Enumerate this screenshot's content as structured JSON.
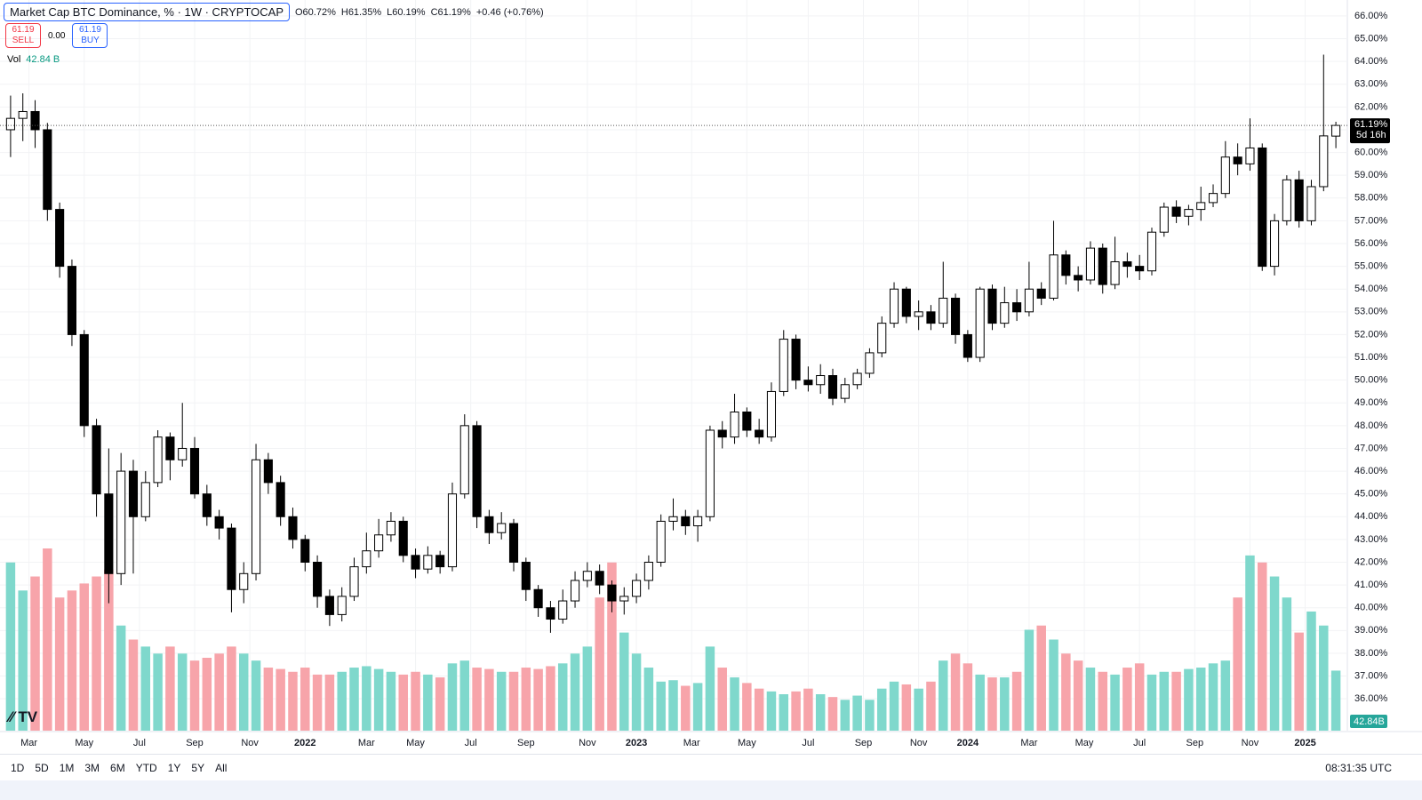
{
  "header": {
    "title": "Market Cap BTC Dominance, % · 1W · CRYPTOCAP",
    "ohlc": [
      "O60.72%",
      "H61.35%",
      "L60.19%",
      "C61.19%",
      "+0.46 (+0.76%)"
    ]
  },
  "trade": {
    "sell_price": "61.19",
    "sell": "SELL",
    "spread": "0.00",
    "buy_price": "61.19",
    "buy": "BUY"
  },
  "volume_legend": {
    "label": "Vol",
    "value": "42.84 B"
  },
  "chart_data": {
    "type": "candlestick",
    "grid": true,
    "up_color": "#ffffff",
    "down_color": "#000000",
    "volume_up_color": "#7fd8cc",
    "volume_down_color": "#f7a4aa",
    "ylim": [
      34.6,
      66.7
    ],
    "yticks": [
      {
        "value": 36,
        "label": "36.00%"
      },
      {
        "value": 37,
        "label": "37.00%"
      },
      {
        "value": 38,
        "label": "38.00%"
      },
      {
        "value": 39,
        "label": "39.00%"
      },
      {
        "value": 40,
        "label": "40.00%"
      },
      {
        "value": 41,
        "label": "41.00%"
      },
      {
        "value": 42,
        "label": "42.00%"
      },
      {
        "value": 43,
        "label": "43.00%"
      },
      {
        "value": 44,
        "label": "44.00%"
      },
      {
        "value": 45,
        "label": "45.00%"
      },
      {
        "value": 46,
        "label": "46.00%"
      },
      {
        "value": 47,
        "label": "47.00%"
      },
      {
        "value": 48,
        "label": "48.00%"
      },
      {
        "value": 49,
        "label": "49.00%"
      },
      {
        "value": 50,
        "label": "50.00%"
      },
      {
        "value": 51,
        "label": "51.00%"
      },
      {
        "value": 52,
        "label": "52.00%"
      },
      {
        "value": 53,
        "label": "53.00%"
      },
      {
        "value": 54,
        "label": "54.00%"
      },
      {
        "value": 55,
        "label": "55.00%"
      },
      {
        "value": 56,
        "label": "56.00%"
      },
      {
        "value": 57,
        "label": "57.00%"
      },
      {
        "value": 58,
        "label": "58.00%"
      },
      {
        "value": 59,
        "label": "59.00%"
      },
      {
        "value": 60,
        "label": "60.00%"
      },
      {
        "value": 61,
        "label": "61.00%"
      },
      {
        "value": 62,
        "label": "62.00%"
      },
      {
        "value": 63,
        "label": "63.00%"
      },
      {
        "value": 64,
        "label": "64.00%"
      },
      {
        "value": 65,
        "label": "65.00%"
      },
      {
        "value": 66,
        "label": "66.00%"
      }
    ],
    "xticks": [
      {
        "value": 1.5,
        "label": "Mar"
      },
      {
        "value": 6,
        "label": "May"
      },
      {
        "value": 10.5,
        "label": "Jul"
      },
      {
        "value": 15,
        "label": "Sep"
      },
      {
        "value": 19.5,
        "label": "Nov"
      },
      {
        "value": 24,
        "label": "2022"
      },
      {
        "value": 29,
        "label": "Mar"
      },
      {
        "value": 33,
        "label": "May"
      },
      {
        "value": 37.5,
        "label": "Jul"
      },
      {
        "value": 42,
        "label": "Sep"
      },
      {
        "value": 47,
        "label": "Nov"
      },
      {
        "value": 51,
        "label": "2023"
      },
      {
        "value": 55.5,
        "label": "Mar"
      },
      {
        "value": 60,
        "label": "May"
      },
      {
        "value": 65,
        "label": "Jul"
      },
      {
        "value": 69.5,
        "label": "Sep"
      },
      {
        "value": 74,
        "label": "Nov"
      },
      {
        "value": 78,
        "label": "2024"
      },
      {
        "value": 83,
        "label": "Mar"
      },
      {
        "value": 87.5,
        "label": "May"
      },
      {
        "value": 92,
        "label": "Jul"
      },
      {
        "value": 96.5,
        "label": "Sep"
      },
      {
        "value": 101,
        "label": "Nov"
      },
      {
        "value": 105.5,
        "label": "2025"
      }
    ],
    "last_price": {
      "value": 61.19,
      "label": "61.19%"
    },
    "countdown": "5d 16h",
    "volume_last_label": "42.84B",
    "candles": [
      [
        61.0,
        62.5,
        59.8,
        61.5
      ],
      [
        61.5,
        62.6,
        60.5,
        61.8
      ],
      [
        61.8,
        62.3,
        60.2,
        61.0
      ],
      [
        61.0,
        61.3,
        57.0,
        57.5
      ],
      [
        57.5,
        57.8,
        54.5,
        55.0
      ],
      [
        55.0,
        55.3,
        51.5,
        52.0
      ],
      [
        52.0,
        52.2,
        47.5,
        48.0
      ],
      [
        48.0,
        48.3,
        44.0,
        45.0
      ],
      [
        45.0,
        47.0,
        40.2,
        41.5
      ],
      [
        41.5,
        46.8,
        41.0,
        46.0
      ],
      [
        46.0,
        46.5,
        41.5,
        44.0
      ],
      [
        44.0,
        46.0,
        43.8,
        45.5
      ],
      [
        45.5,
        47.8,
        45.3,
        47.5
      ],
      [
        47.5,
        47.7,
        45.6,
        46.5
      ],
      [
        46.5,
        49.0,
        46.2,
        47.0
      ],
      [
        47.0,
        47.5,
        44.8,
        45.0
      ],
      [
        45.0,
        45.4,
        43.6,
        44.0
      ],
      [
        44.0,
        44.3,
        43.0,
        43.5
      ],
      [
        43.5,
        43.7,
        39.8,
        40.8
      ],
      [
        40.8,
        42.0,
        40.2,
        41.5
      ],
      [
        41.5,
        47.2,
        41.2,
        46.5
      ],
      [
        46.5,
        46.8,
        45.0,
        45.5
      ],
      [
        45.5,
        45.8,
        43.6,
        44.0
      ],
      [
        44.0,
        44.4,
        42.6,
        43.0
      ],
      [
        43.0,
        43.2,
        41.6,
        42.0
      ],
      [
        42.0,
        42.3,
        40.0,
        40.5
      ],
      [
        40.5,
        40.8,
        39.2,
        39.7
      ],
      [
        39.7,
        40.9,
        39.4,
        40.5
      ],
      [
        40.5,
        42.2,
        40.3,
        41.8
      ],
      [
        41.8,
        43.3,
        41.5,
        42.5
      ],
      [
        42.5,
        43.9,
        42.2,
        43.2
      ],
      [
        43.2,
        44.2,
        42.9,
        43.8
      ],
      [
        43.8,
        44.0,
        42.0,
        42.3
      ],
      [
        42.3,
        42.6,
        41.3,
        41.7
      ],
      [
        41.7,
        42.7,
        41.5,
        42.3
      ],
      [
        42.3,
        42.5,
        41.5,
        41.8
      ],
      [
        41.8,
        45.5,
        41.6,
        45.0
      ],
      [
        45.0,
        48.5,
        44.8,
        48.0
      ],
      [
        48.0,
        48.2,
        43.5,
        44.0
      ],
      [
        44.0,
        44.3,
        42.8,
        43.3
      ],
      [
        43.3,
        44.2,
        43.0,
        43.7
      ],
      [
        43.7,
        43.9,
        41.6,
        42.0
      ],
      [
        42.0,
        42.2,
        40.3,
        40.8
      ],
      [
        40.8,
        41.0,
        39.6,
        40.0
      ],
      [
        40.0,
        40.3,
        38.9,
        39.5
      ],
      [
        39.5,
        40.8,
        39.3,
        40.3
      ],
      [
        40.3,
        41.6,
        40.0,
        41.2
      ],
      [
        41.2,
        42.0,
        40.9,
        41.6
      ],
      [
        41.6,
        41.9,
        40.6,
        41.0
      ],
      [
        41.0,
        41.2,
        39.8,
        40.3
      ],
      [
        40.3,
        40.9,
        39.7,
        40.5
      ],
      [
        40.5,
        41.5,
        40.2,
        41.2
      ],
      [
        41.2,
        42.3,
        40.8,
        42.0
      ],
      [
        42.0,
        44.1,
        41.8,
        43.8
      ],
      [
        43.8,
        44.8,
        43.4,
        44.0
      ],
      [
        44.0,
        44.3,
        43.2,
        43.6
      ],
      [
        43.6,
        44.3,
        42.9,
        44.0
      ],
      [
        44.0,
        48.0,
        43.8,
        47.8
      ],
      [
        47.8,
        48.2,
        47.0,
        47.5
      ],
      [
        47.5,
        49.4,
        47.2,
        48.6
      ],
      [
        48.6,
        48.8,
        47.5,
        47.8
      ],
      [
        47.8,
        48.3,
        47.2,
        47.5
      ],
      [
        47.5,
        49.9,
        47.3,
        49.5
      ],
      [
        49.5,
        52.2,
        49.3,
        51.8
      ],
      [
        51.8,
        52.0,
        49.6,
        50.0
      ],
      [
        50.0,
        50.6,
        49.5,
        49.8
      ],
      [
        49.8,
        50.7,
        49.4,
        50.2
      ],
      [
        50.2,
        50.5,
        48.9,
        49.2
      ],
      [
        49.2,
        50.1,
        49.0,
        49.8
      ],
      [
        49.8,
        50.5,
        49.6,
        50.3
      ],
      [
        50.3,
        51.4,
        50.1,
        51.2
      ],
      [
        51.2,
        52.8,
        51.0,
        52.5
      ],
      [
        52.5,
        54.3,
        52.3,
        54.0
      ],
      [
        54.0,
        54.1,
        52.5,
        52.8
      ],
      [
        52.8,
        53.5,
        52.2,
        53.0
      ],
      [
        53.0,
        53.3,
        52.2,
        52.5
      ],
      [
        52.5,
        55.2,
        52.3,
        53.6
      ],
      [
        53.6,
        53.8,
        51.6,
        52.0
      ],
      [
        52.0,
        52.2,
        50.8,
        51.0
      ],
      [
        51.0,
        54.1,
        50.8,
        54.0
      ],
      [
        54.0,
        54.2,
        52.2,
        52.5
      ],
      [
        52.5,
        54.1,
        52.3,
        53.4
      ],
      [
        53.4,
        54.0,
        52.6,
        53.0
      ],
      [
        53.0,
        55.2,
        52.8,
        54.0
      ],
      [
        54.0,
        54.3,
        53.3,
        53.6
      ],
      [
        53.6,
        57.0,
        53.5,
        55.5
      ],
      [
        55.5,
        55.7,
        54.2,
        54.6
      ],
      [
        54.6,
        55.0,
        53.9,
        54.4
      ],
      [
        54.4,
        56.1,
        54.2,
        55.8
      ],
      [
        55.8,
        56.0,
        53.8,
        54.2
      ],
      [
        54.2,
        56.3,
        54.0,
        55.2
      ],
      [
        55.2,
        55.6,
        54.5,
        55.0
      ],
      [
        55.0,
        55.5,
        54.4,
        54.8
      ],
      [
        54.8,
        56.7,
        54.6,
        56.5
      ],
      [
        56.5,
        57.8,
        56.3,
        57.6
      ],
      [
        57.6,
        57.9,
        56.9,
        57.2
      ],
      [
        57.2,
        57.7,
        56.8,
        57.5
      ],
      [
        57.5,
        58.5,
        57.0,
        57.8
      ],
      [
        57.8,
        58.6,
        57.6,
        58.2
      ],
      [
        58.2,
        60.5,
        58.0,
        59.8
      ],
      [
        59.8,
        60.4,
        59.0,
        59.5
      ],
      [
        59.5,
        61.5,
        59.2,
        60.2
      ],
      [
        60.2,
        60.4,
        54.8,
        55.0
      ],
      [
        55.0,
        57.3,
        54.6,
        57.0
      ],
      [
        57.0,
        59.0,
        56.8,
        58.8
      ],
      [
        58.8,
        59.2,
        56.7,
        57.0
      ],
      [
        57.0,
        58.8,
        56.8,
        58.5
      ],
      [
        58.5,
        64.3,
        58.3,
        60.73
      ],
      [
        60.72,
        61.35,
        60.19,
        61.19
      ]
    ],
    "volume": [
      120,
      100,
      110,
      130,
      95,
      100,
      105,
      110,
      115,
      75,
      65,
      60,
      55,
      60,
      55,
      50,
      52,
      55,
      60,
      55,
      50,
      45,
      44,
      42,
      45,
      40,
      40,
      42,
      45,
      46,
      44,
      42,
      40,
      42,
      40,
      38,
      48,
      50,
      45,
      44,
      42,
      42,
      45,
      44,
      46,
      48,
      55,
      60,
      95,
      120,
      70,
      55,
      45,
      35,
      36,
      32,
      34,
      60,
      45,
      38,
      34,
      30,
      28,
      26,
      28,
      30,
      26,
      24,
      22,
      25,
      22,
      30,
      35,
      33,
      30,
      35,
      50,
      55,
      48,
      40,
      38,
      38,
      42,
      72,
      75,
      65,
      55,
      50,
      45,
      42,
      40,
      45,
      48,
      40,
      42,
      42,
      44,
      45,
      48,
      50,
      95,
      125,
      120,
      110,
      95,
      70,
      85,
      75,
      42.84
    ]
  },
  "toolbar": {
    "ranges": [
      "1D",
      "5D",
      "1M",
      "3M",
      "6M",
      "YTD",
      "1Y",
      "5Y",
      "All"
    ],
    "clock": "08:31:35 UTC"
  }
}
